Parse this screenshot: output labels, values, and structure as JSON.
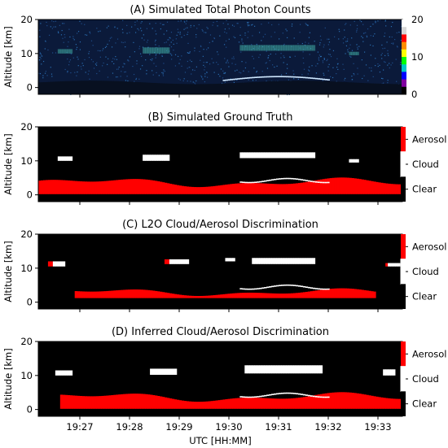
{
  "figure": {
    "xlabel": "UTC [HH:MM]",
    "time_ticks": [
      "19:27",
      "19:28",
      "19:29",
      "19:30",
      "19:31",
      "19:32",
      "19:33"
    ]
  },
  "chart_data": [
    {
      "type": "heatmap",
      "title": "(A) Simulated Total Photon Counts",
      "ylabel": "Altitude [km]",
      "xlabel": "",
      "yticks": [
        "0",
        "10",
        "20"
      ],
      "ylim": [
        -2,
        20
      ],
      "colorbar": {
        "ticks": [
          "0",
          "10",
          "20"
        ],
        "range": [
          0,
          20
        ],
        "colormap": "nipy_spectral-like"
      },
      "features": [
        {
          "name": "ground/aerosol layer",
          "altitude_km": [
            0,
            2.5
          ],
          "counts": "high"
        },
        {
          "name": "cirrus cloud",
          "altitude_km": [
            9,
            13
          ],
          "counts": "medium"
        }
      ]
    },
    {
      "type": "heatmap",
      "title": "(B) Simulated Ground Truth",
      "ylabel": "Altitude [km]",
      "yticks": [
        "0",
        "10",
        "20"
      ],
      "ylim": [
        -2,
        20
      ],
      "classes": [
        "Aerosol",
        "Cloud",
        "Clear"
      ],
      "class_colors": {
        "Aerosol": "#ff0000",
        "Cloud": "#ffffff",
        "Clear": "#000000"
      }
    },
    {
      "type": "heatmap",
      "title": "(C) L2O Cloud/Aerosol Discrimination",
      "ylabel": "Altitude [km]",
      "yticks": [
        "0",
        "10",
        "20"
      ],
      "ylim": [
        -2,
        20
      ],
      "classes": [
        "Aerosol",
        "Cloud",
        "Clear"
      ],
      "class_colors": {
        "Aerosol": "#ff0000",
        "Cloud": "#ffffff",
        "Clear": "#000000"
      }
    },
    {
      "type": "heatmap",
      "title": "(D) Inferred Cloud/Aerosol Discrimination",
      "ylabel": "Altitude [km]",
      "xlabel": "UTC [HH:MM]",
      "yticks": [
        "0",
        "10",
        "20"
      ],
      "ylim": [
        -2,
        20
      ],
      "classes": [
        "Aerosol",
        "Cloud",
        "Clear"
      ],
      "class_colors": {
        "Aerosol": "#ff0000",
        "Cloud": "#ffffff",
        "Clear": "#000000"
      }
    }
  ]
}
